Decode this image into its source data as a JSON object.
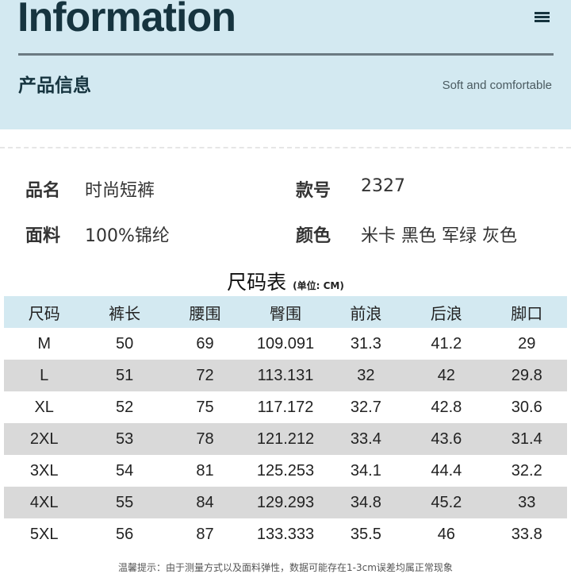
{
  "header": {
    "title": "Information",
    "subtitle": "产品信息",
    "tagline": "Soft and comfortable"
  },
  "info": {
    "name_label": "品名",
    "name_value": "时尚短裤",
    "style_label": "款号",
    "style_value": "2327",
    "fabric_label": "面料",
    "fabric_value": "100%锦纶",
    "color_label": "颜色",
    "color_value": "米卡 黑色 军绿 灰色"
  },
  "size_table": {
    "title": "尺码表",
    "unit": "(单位: CM)",
    "headers": [
      "尺码",
      "裤长",
      "腰围",
      "臀围",
      "前浪",
      "后浪",
      "脚口"
    ],
    "rows": [
      [
        "M",
        "50",
        "69",
        "109.091",
        "31.3",
        "41.2",
        "29"
      ],
      [
        "L",
        "51",
        "72",
        "113.131",
        "32",
        "42",
        "29.8"
      ],
      [
        "XL",
        "52",
        "75",
        "117.172",
        "32.7",
        "42.8",
        "30.6"
      ],
      [
        "2XL",
        "53",
        "78",
        "121.212",
        "33.4",
        "43.6",
        "31.4"
      ],
      [
        "3XL",
        "54",
        "81",
        "125.253",
        "34.1",
        "44.4",
        "32.2"
      ],
      [
        "4XL",
        "55",
        "84",
        "129.293",
        "34.8",
        "45.2",
        "33"
      ],
      [
        "5XL",
        "56",
        "87",
        "133.333",
        "35.5",
        "46",
        "33.8"
      ]
    ]
  },
  "note": "温馨提示：由于测量方式以及面料弹性，数据可能存在1-3cm误差均属正常现象",
  "colors": {
    "header_bg": "#d3e9f1",
    "alt_row": "#d9d9d9",
    "title_text": "#16343f"
  }
}
